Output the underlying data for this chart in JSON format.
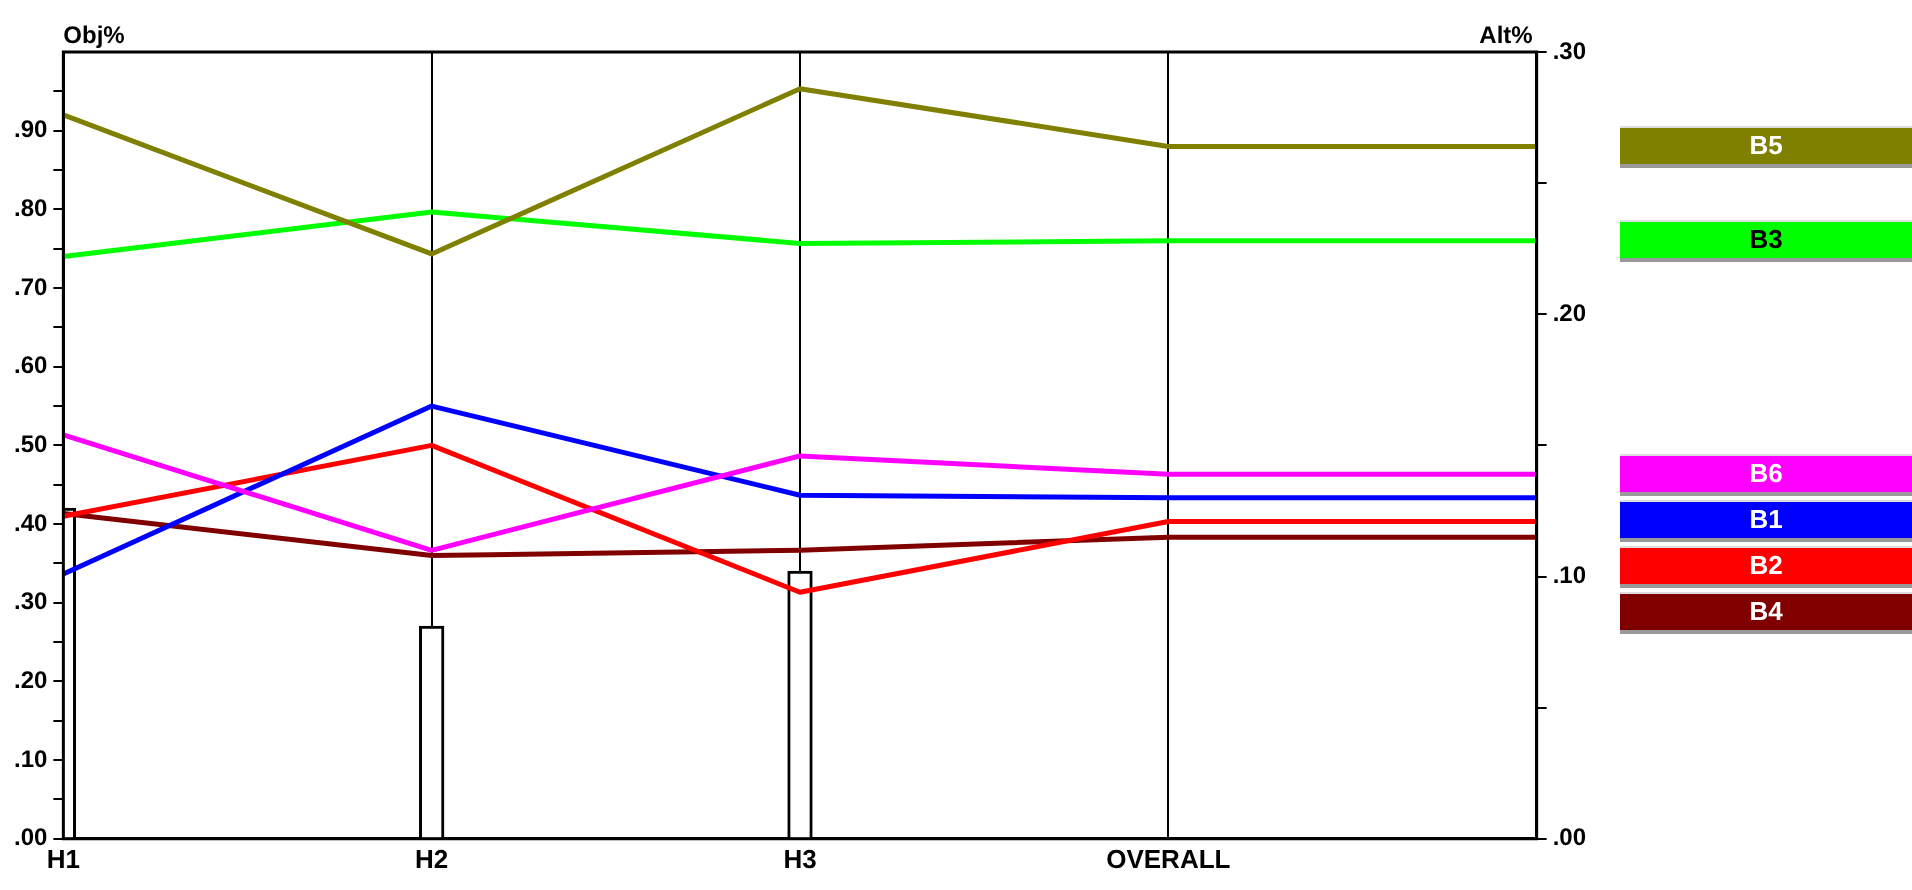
{
  "chart_data": {
    "type": "line",
    "ylabel": "Obj%",
    "y2label": "Alt%",
    "categories": [
      "H1",
      "H2",
      "H3",
      "OVERALL",
      null
    ],
    "series": [
      {
        "name": "B5",
        "color": "#808000",
        "axis": "y2",
        "values": [
          0.276,
          0.223,
          0.286,
          0.264,
          0.264
        ]
      },
      {
        "name": "B3",
        "color": "#00ff00",
        "axis": "y2",
        "values": [
          0.222,
          0.239,
          0.227,
          0.228,
          0.228
        ]
      },
      {
        "name": "B6",
        "color": "#ff00ff",
        "axis": "y2",
        "values": [
          0.154,
          0.11,
          0.146,
          0.139,
          0.139
        ]
      },
      {
        "name": "B1",
        "color": "#0000ff",
        "axis": "y2",
        "values": [
          0.101,
          0.165,
          0.131,
          0.13,
          0.13
        ]
      },
      {
        "name": "B2",
        "color": "#ff0000",
        "axis": "y2",
        "values": [
          0.123,
          0.15,
          0.094,
          0.121,
          0.121
        ]
      },
      {
        "name": "B4",
        "color": "#800000",
        "axis": "y2",
        "values": [
          0.124,
          0.108,
          0.11,
          0.115,
          0.115
        ]
      },
      {
        "type": "bar",
        "color": "#ffffff",
        "values": [
          0.42,
          0.27,
          0.34,
          null,
          null
        ]
      }
    ],
    "ylim": [
      0,
      1
    ],
    "yticks": [
      {
        "value": 0,
        "label": ".00"
      },
      {
        "value": 0.05,
        "label": null
      },
      {
        "value": 0.1,
        "label": ".10"
      },
      {
        "value": 0.15,
        "label": null
      },
      {
        "value": 0.2,
        "label": ".20"
      },
      {
        "value": 0.25,
        "label": null
      },
      {
        "value": 0.3,
        "label": ".30"
      },
      {
        "value": 0.35,
        "label": null
      },
      {
        "value": 0.4,
        "label": ".40"
      },
      {
        "value": 0.45,
        "label": null
      },
      {
        "value": 0.5,
        "label": ".50"
      },
      {
        "value": 0.55,
        "label": null
      },
      {
        "value": 0.6,
        "label": ".60"
      },
      {
        "value": 0.65,
        "label": null
      },
      {
        "value": 0.7,
        "label": ".70"
      },
      {
        "value": 0.75,
        "label": null
      },
      {
        "value": 0.8,
        "label": ".80"
      },
      {
        "value": 0.85,
        "label": null
      },
      {
        "value": 0.9,
        "label": ".90"
      },
      {
        "value": 0.95,
        "label": null
      }
    ],
    "y2lim": [
      0,
      0.3
    ],
    "y2ticks": [
      {
        "value": 0,
        "label": ".00"
      },
      {
        "value": 0.05,
        "label": null
      },
      {
        "value": 0.1,
        "label": ".10"
      },
      {
        "value": 0.15,
        "label": null
      },
      {
        "value": 0.2,
        "label": ".20"
      },
      {
        "value": 0.25,
        "label": null
      },
      {
        "value": 0.3,
        "label": ".30"
      }
    ],
    "grid": "x",
    "legend": "right",
    "marker": "none",
    "line_style": "solid"
  }
}
